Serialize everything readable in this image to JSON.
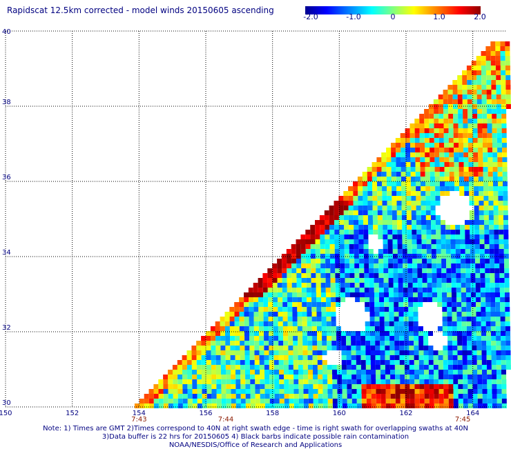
{
  "title": "Rapidscat 12.5km corrected - model winds 20150605 ascending",
  "colorbar": {
    "ticks": [
      "-2.0",
      "-1.0",
      "0",
      "1.0",
      "2.0"
    ],
    "range": [
      -2.0,
      2.0
    ],
    "colors": [
      "#000090",
      "#0000ff",
      "#0080ff",
      "#00ffff",
      "#80ff80",
      "#ffff00",
      "#ff8000",
      "#ff0000",
      "#900000"
    ]
  },
  "axes": {
    "lon_labels": [
      "150",
      "152",
      "154",
      "156",
      "158",
      "160",
      "162",
      "164"
    ],
    "lat_labels": [
      "30",
      "32",
      "34",
      "36",
      "38",
      "40"
    ]
  },
  "time_labels": [
    "7:43",
    "7:44",
    "7:45"
  ],
  "notes": [
    "Note: 1) Times are GMT 2)Times correspond to 40N at right swath edge - time is right swath for overlapping swaths at 40N",
    "3)Data buffer is 22 hrs for 20150605 4) Black barbs indicate possible rain contamination",
    "NOAA/NESDIS/Office of Research and Applications"
  ]
}
